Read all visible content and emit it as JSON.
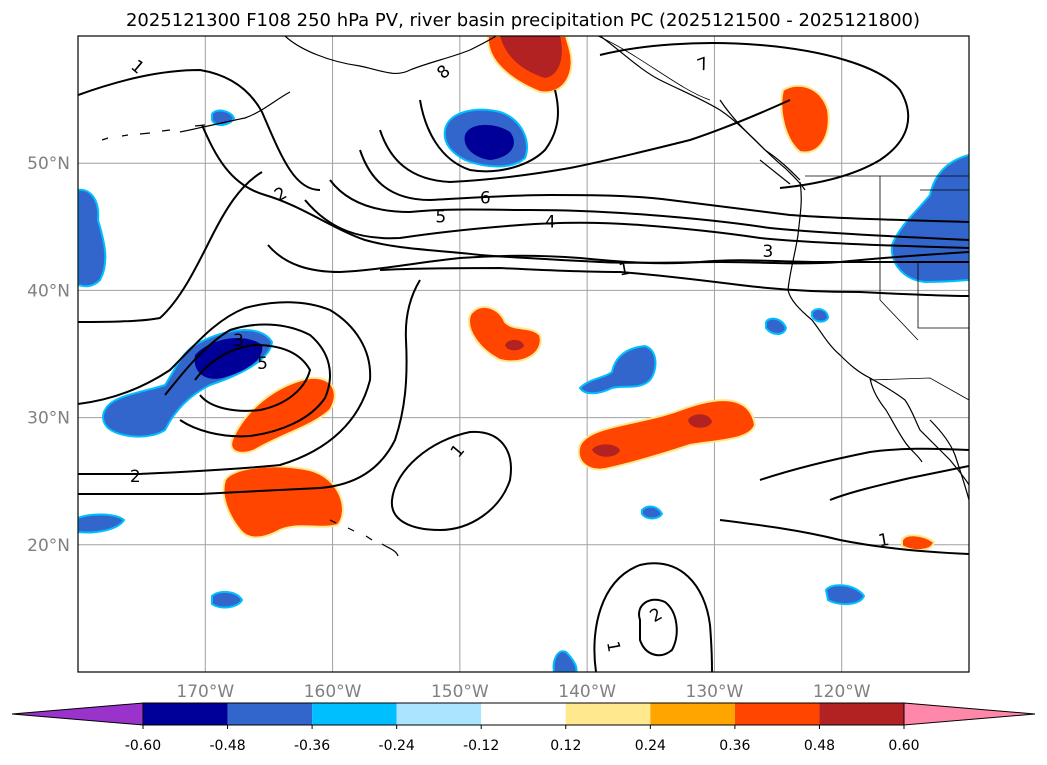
{
  "title": "2025121300 F108 250 hPa PV, river basin precipitation PC (2025121500 - 2025121800)",
  "map": {
    "lon_range": [
      -180,
      -110
    ],
    "lat_range": [
      10,
      60
    ],
    "lat_ticks": [
      {
        "value": 50,
        "label": "50°N"
      },
      {
        "value": 40,
        "label": "40°N"
      },
      {
        "value": 30,
        "label": "30°N"
      },
      {
        "value": 20,
        "label": "20°N"
      }
    ],
    "lon_ticks": [
      {
        "value": -170,
        "label": "170°W"
      },
      {
        "value": -160,
        "label": "160°W"
      },
      {
        "value": -150,
        "label": "150°W"
      },
      {
        "value": -140,
        "label": "140°W"
      },
      {
        "value": -130,
        "label": "130°W"
      },
      {
        "value": -120,
        "label": "120°W"
      }
    ],
    "gridlines": true
  },
  "contour_labels": [
    {
      "text": "1",
      "lon": -175.3,
      "lat": 57.6,
      "angle": 40
    },
    {
      "text": "8",
      "lon": -151.3,
      "lat": 57.2,
      "angle": -40
    },
    {
      "text": "7",
      "lon": -130.9,
      "lat": 57.8,
      "angle": -20
    },
    {
      "text": "2",
      "lon": -164.1,
      "lat": 47.6,
      "angle": -30
    },
    {
      "text": "6",
      "lon": -148.0,
      "lat": 47.3,
      "angle": 0
    },
    {
      "text": "5",
      "lon": -151.5,
      "lat": 45.8,
      "angle": 0
    },
    {
      "text": "4",
      "lon": -142.9,
      "lat": 45.4,
      "angle": 0
    },
    {
      "text": "3",
      "lon": -125.8,
      "lat": 43.1,
      "angle": 0
    },
    {
      "text": "1",
      "lon": -137.1,
      "lat": 41.7,
      "angle": -10
    },
    {
      "text": "3",
      "lon": -167.4,
      "lat": 36.1,
      "angle": 0
    },
    {
      "text": "5",
      "lon": -165.5,
      "lat": 34.3,
      "angle": 0
    },
    {
      "text": "1",
      "lon": -150.2,
      "lat": 27.4,
      "angle": -50
    },
    {
      "text": "2",
      "lon": -175.5,
      "lat": 25.4,
      "angle": 0
    },
    {
      "text": "1",
      "lon": -116.7,
      "lat": 20.4,
      "angle": -10
    },
    {
      "text": "2",
      "lon": -134.6,
      "lat": 14.5,
      "angle": -30
    },
    {
      "text": "1",
      "lon": -137.9,
      "lat": 12.0,
      "angle": 80
    }
  ],
  "colorbar": {
    "levels": [
      "-0.60",
      "-0.48",
      "-0.36",
      "-0.24",
      "-0.12",
      "0.12",
      "0.24",
      "0.36",
      "0.48",
      "0.60"
    ],
    "colors": [
      "#9933cc",
      "#000099",
      "#3366cc",
      "#00bfff",
      "#aae4ff",
      "#ffffff",
      "#ffe88e",
      "#ffa500",
      "#ff4500",
      "#b22222",
      "#ff88aa"
    ]
  }
}
